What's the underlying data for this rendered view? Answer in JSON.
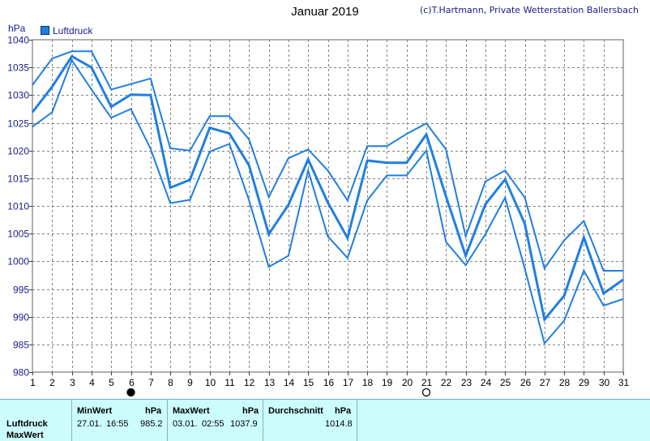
{
  "header": {
    "title": "Januar 2019",
    "credit": "(c)T.Hartmann, Private Wetterstation Ballersbach",
    "unit": "hPa",
    "legend_label": "Luftdruck"
  },
  "chart_data": {
    "type": "line",
    "title": "Januar 2019",
    "ylabel": "hPa",
    "xlabel": "",
    "x": [
      1,
      2,
      3,
      4,
      5,
      6,
      7,
      8,
      9,
      10,
      11,
      12,
      13,
      14,
      15,
      16,
      17,
      18,
      19,
      20,
      21,
      22,
      23,
      24,
      25,
      26,
      27,
      28,
      29,
      30,
      31
    ],
    "ylim": [
      980,
      1040
    ],
    "xlim": [
      1,
      31
    ],
    "yticks": [
      980,
      985,
      990,
      995,
      1000,
      1005,
      1010,
      1015,
      1020,
      1025,
      1030,
      1035,
      1040
    ],
    "grid": true,
    "legend_position": "top-left",
    "moon_phases": [
      {
        "day": 6,
        "phase": "new"
      },
      {
        "day": 21,
        "phase": "full"
      }
    ],
    "series": [
      {
        "name": "Luftdruck",
        "role": "max",
        "values": [
          1031.8,
          1036.6,
          1037.9,
          1037.9,
          1031.0,
          1032.0,
          1033.0,
          1020.4,
          1020.0,
          1026.2,
          1026.2,
          1022.0,
          1011.6,
          1018.6,
          1020.2,
          1016.4,
          1011.0,
          1020.8,
          1020.8,
          1023.0,
          1024.9,
          1020.2,
          1004.5,
          1014.4,
          1016.4,
          1011.5,
          998.7,
          1003.8,
          1007.3,
          998.3,
          998.3
        ]
      },
      {
        "name": "Luftdruck",
        "role": "mean",
        "values": [
          1026.9,
          1031.5,
          1037.0,
          1035.0,
          1027.9,
          1030.1,
          1030.0,
          1013.3,
          1014.7,
          1024.1,
          1023.1,
          1017.3,
          1004.9,
          1010.2,
          1018.4,
          1010.6,
          1004.2,
          1018.2,
          1017.8,
          1017.8,
          1022.9,
          1011.7,
          1001.0,
          1010.3,
          1014.8,
          1006.8,
          989.5,
          993.8,
          1004.3,
          994.2,
          996.7
        ]
      },
      {
        "name": "Luftdruck",
        "role": "min",
        "values": [
          1024.3,
          1026.9,
          1036.3,
          1031.0,
          1025.9,
          1027.5,
          1020.3,
          1010.5,
          1011.1,
          1019.8,
          1021.2,
          1011.0,
          999.0,
          1001.0,
          1016.4,
          1004.5,
          1000.6,
          1011.0,
          1015.5,
          1015.5,
          1020.0,
          1003.5,
          999.3,
          1004.9,
          1011.5,
          998.7,
          985.2,
          989.3,
          998.3,
          992.0,
          993.2
        ]
      }
    ]
  },
  "table": {
    "row_label": "Luftdruck",
    "row2_label": "MaxWert",
    "min_header": "MinWert",
    "min_unit": "hPa",
    "max_header": "MaxWert",
    "max_unit": "hPa",
    "avg_header": "Durchschnitt",
    "avg_unit": "hPa",
    "min_date": "27.01.",
    "min_time": "16:55",
    "min_value": "985.2",
    "max_date": "03.01.",
    "max_time": "02:55",
    "max_value": "1037.9",
    "avg_value": "1014.8"
  },
  "colors": {
    "line": "#1f7fe0",
    "grid": "#808080",
    "table_bg": "#ccfdfd"
  }
}
